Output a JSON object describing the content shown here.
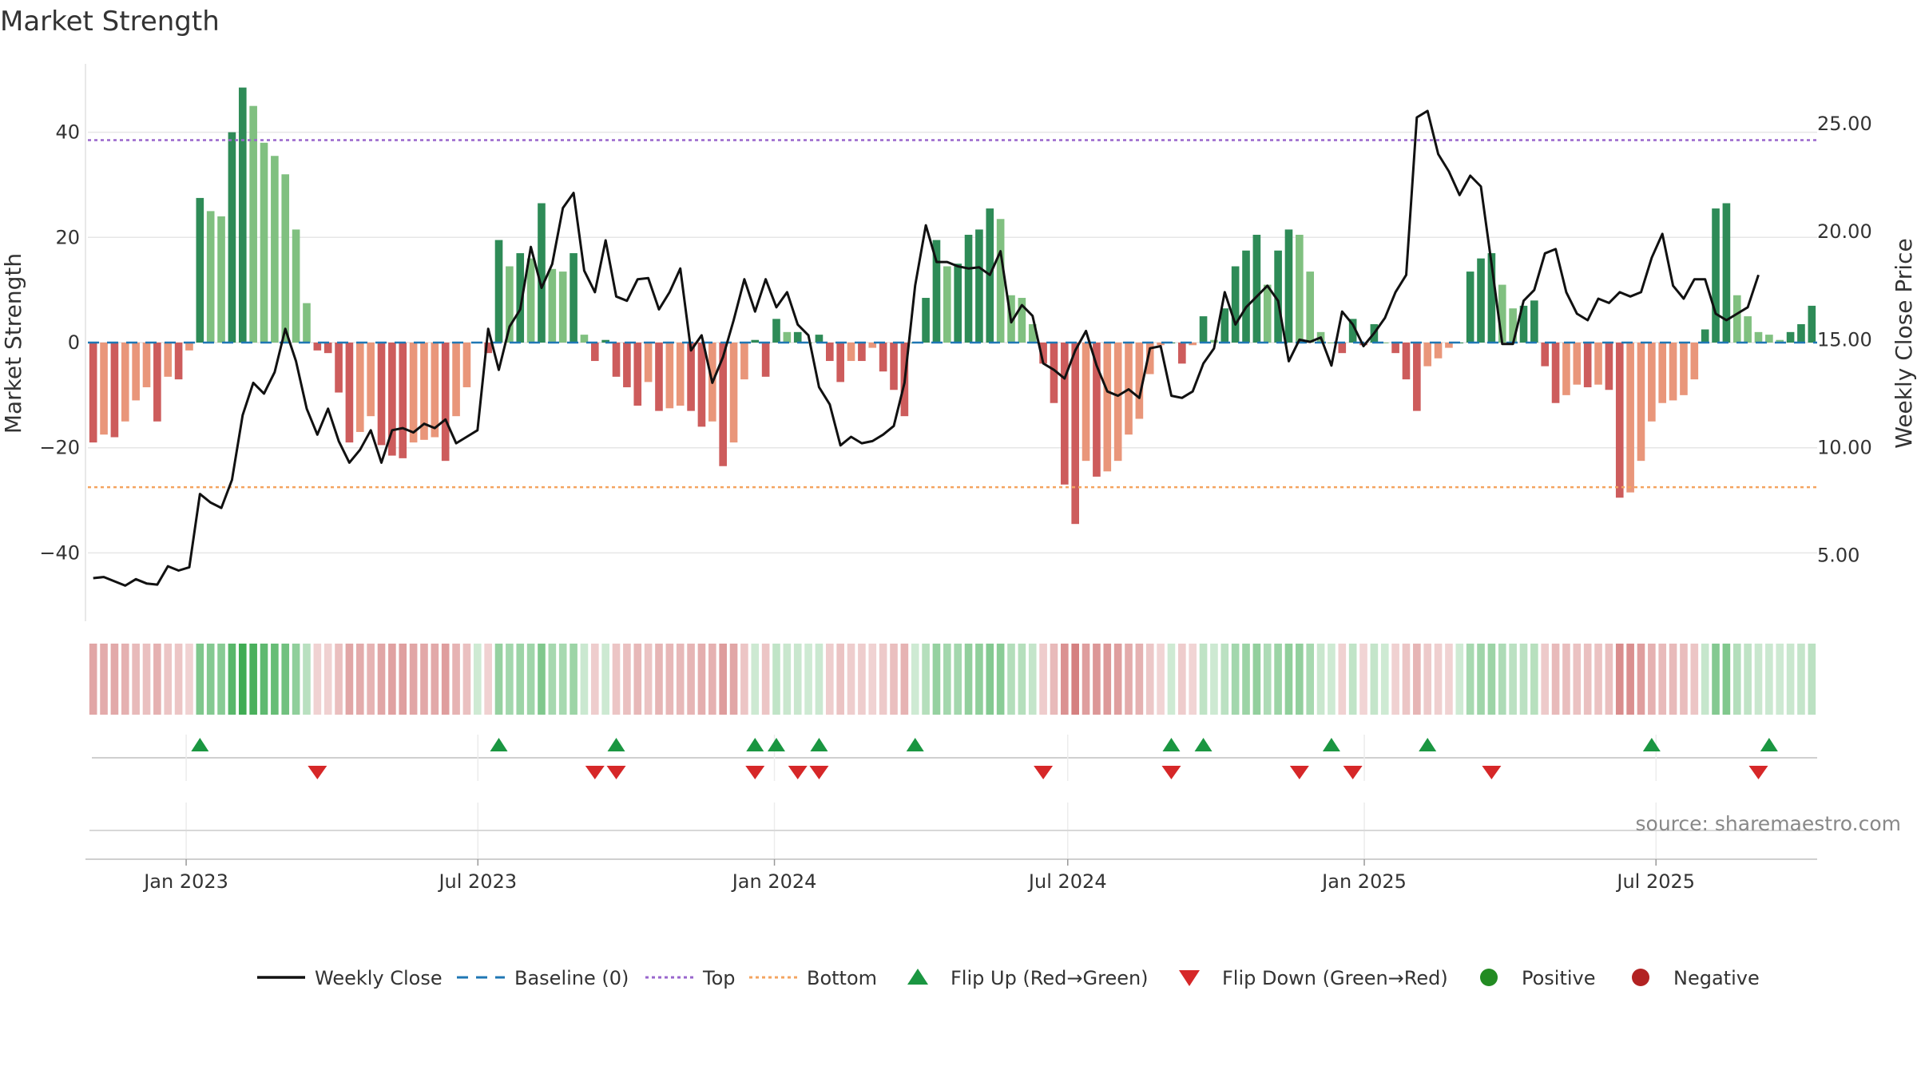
{
  "title": "Market Strength",
  "source": "source: sharemaestro.com",
  "chart_data": {
    "type": "bar",
    "title": "Market Strength",
    "ylabel_left": "Market Strength",
    "ylabel_right": "Weekly Close Price",
    "ylim_left": [
      -53,
      53
    ],
    "ylim_right": [
      1.95,
      27.78
    ],
    "yticks_left": [
      40,
      20,
      0,
      -20,
      -40
    ],
    "yticks_left_labels": [
      "40",
      "20",
      "0",
      "−20",
      "−40"
    ],
    "yticks_right": [
      25,
      20,
      15,
      10,
      5
    ],
    "yticks_right_labels": [
      "25.00",
      "20.00",
      "15.00",
      "10.00",
      "5.00"
    ],
    "x_start": "2022-11-01",
    "x_end": "2025-10-09",
    "x_ticks": [
      "Jan 2023",
      "Jul 2023",
      "Jan 2024",
      "Jul 2024",
      "Jan 2025",
      "Jul 2025"
    ],
    "x_tick_dates": [
      "2023-01-01",
      "2023-07-01",
      "2024-01-01",
      "2024-07-01",
      "2025-01-01",
      "2025-07-01"
    ],
    "top_line": 38.5,
    "bottom_line": -27.5,
    "baseline": 0,
    "strength": [
      -19,
      -17.5,
      -18,
      -15,
      -11,
      -8.5,
      -15,
      -6.5,
      -7,
      -1.5,
      27.5,
      25,
      24,
      40,
      48.5,
      45,
      38,
      35.5,
      32,
      21.5,
      7.5,
      -1.5,
      -2,
      -9.5,
      -19,
      -17,
      -14,
      -19.5,
      -21.5,
      -22,
      -19,
      -18.5,
      -18,
      -22.5,
      -14,
      -8.5,
      0,
      -2,
      19.5,
      14.5,
      17,
      16,
      26.5,
      14,
      13.5,
      17,
      1.5,
      -3.5,
      0.5,
      -6.5,
      -8.5,
      -12,
      -7.5,
      -13,
      -12.5,
      -12,
      -13,
      -16,
      -15,
      -23.5,
      -19,
      -7,
      0.5,
      -6.5,
      4.5,
      2,
      2,
      0,
      1.5,
      -3.5,
      -7.5,
      -3.5,
      -3.5,
      -1,
      -5.5,
      -9,
      -14,
      0,
      8.5,
      19.5,
      14.5,
      15,
      20.5,
      21.5,
      25.5,
      23.5,
      9,
      8.5,
      3.5,
      -4,
      -11.5,
      -27,
      -34.5,
      -22.5,
      -25.5,
      -24.5,
      -22.5,
      -17.5,
      -14.5,
      -6,
      -0.5,
      0,
      -4,
      -0.5,
      5,
      0.5,
      6.5,
      14.5,
      17.5,
      20.5,
      11,
      17.5,
      21.5,
      20.5,
      13.5,
      2,
      0,
      -2,
      4.5,
      -0.5,
      3.5,
      0,
      -2,
      -7,
      -13,
      -4.5,
      -3,
      -1,
      0,
      13.5,
      16,
      17,
      11,
      6.5,
      7,
      8,
      -4.5,
      -11.5,
      -10,
      -8,
      -8.5,
      -8,
      -9,
      -29.5,
      -28.5,
      -22.5,
      -15,
      -11.5,
      -11,
      -10,
      -7,
      2.5,
      25.5,
      26.5,
      9,
      5,
      2,
      1.5,
      0.5,
      2,
      3.5,
      7
    ],
    "close": [
      3.95,
      4.0,
      3.8,
      3.6,
      3.9,
      3.7,
      3.65,
      4.5,
      4.3,
      4.45,
      7.85,
      7.45,
      7.2,
      8.5,
      11.5,
      13.0,
      12.5,
      13.5,
      15.5,
      14.0,
      11.8,
      10.6,
      11.8,
      10.3,
      9.3,
      9.9,
      10.8,
      9.3,
      10.8,
      10.9,
      10.7,
      11.1,
      10.9,
      11.3,
      10.2,
      10.5,
      10.8,
      15.5,
      13.6,
      15.6,
      16.4,
      19.3,
      17.4,
      18.5,
      21.1,
      21.8,
      18.2,
      17.2,
      19.6,
      17.0,
      16.8,
      17.8,
      17.85,
      16.4,
      17.2,
      18.3,
      14.5,
      15.2,
      13.0,
      14.2,
      15.9,
      17.8,
      16.3,
      17.8,
      16.5,
      17.2,
      15.7,
      15.2,
      12.8,
      12.0,
      10.1,
      10.5,
      10.2,
      10.3,
      10.6,
      11.0,
      13.0,
      17.5,
      20.3,
      18.6,
      18.6,
      18.4,
      18.3,
      18.35,
      18.0,
      19.1,
      15.8,
      16.6,
      16.1,
      13.9,
      13.6,
      13.2,
      14.5,
      15.4,
      13.8,
      12.6,
      12.4,
      12.7,
      12.3,
      14.6,
      14.7,
      12.4,
      12.3,
      12.6,
      13.9,
      14.6,
      17.2,
      15.7,
      16.5,
      17.0,
      17.5,
      16.8,
      14.0,
      15.0,
      14.9,
      15.1,
      13.8,
      16.3,
      15.7,
      14.7,
      15.3,
      16.0,
      17.2,
      18.0,
      25.3,
      25.6,
      23.6,
      22.8,
      21.7,
      22.6,
      22.1,
      18.5,
      14.8,
      14.8,
      16.8,
      17.3,
      19.0,
      19.2,
      17.2,
      16.2,
      15.9,
      16.9,
      16.7,
      17.2,
      17.0,
      17.2,
      18.8,
      19.9,
      17.5,
      16.9,
      17.8,
      17.8,
      16.2,
      15.9,
      16.2,
      16.5,
      18.0
    ],
    "colors": {
      "strong_green": "#2e8b57",
      "light_green": "#80c080",
      "strong_red": "#cd5c5c",
      "light_red": "#e9967a",
      "close_line": "#111111",
      "baseline": "#1f77b4",
      "top": "#9966cc",
      "bottom": "#f4a460",
      "flip_up": "#1a9641",
      "flip_down": "#d62728",
      "positive": "#228b22",
      "negative": "#b22222"
    },
    "flip_up_weeks": [
      10,
      38,
      49,
      62,
      64,
      68,
      77,
      101,
      104,
      116,
      125,
      146,
      157
    ],
    "flip_down_weeks": [
      21,
      47,
      49,
      62,
      66,
      68,
      89,
      101,
      113,
      118,
      131,
      156
    ],
    "legend": [
      {
        "label": "Weekly Close",
        "symbol": "line",
        "color_key": "close_line"
      },
      {
        "label": "Baseline (0)",
        "symbol": "dash",
        "color_key": "baseline"
      },
      {
        "label": "Top",
        "symbol": "dot",
        "color_key": "top"
      },
      {
        "label": "Bottom",
        "symbol": "dot",
        "color_key": "bottom"
      },
      {
        "label": "Flip Up (Red→Green)",
        "symbol": "tri-up",
        "color_key": "flip_up"
      },
      {
        "label": "Flip Down (Green→Red)",
        "symbol": "tri-down",
        "color_key": "flip_down"
      },
      {
        "label": "Positive",
        "symbol": "circle",
        "color_key": "positive"
      },
      {
        "label": "Negative",
        "symbol": "circle",
        "color_key": "negative"
      }
    ],
    "legend_position": "bottom",
    "grid": true
  }
}
